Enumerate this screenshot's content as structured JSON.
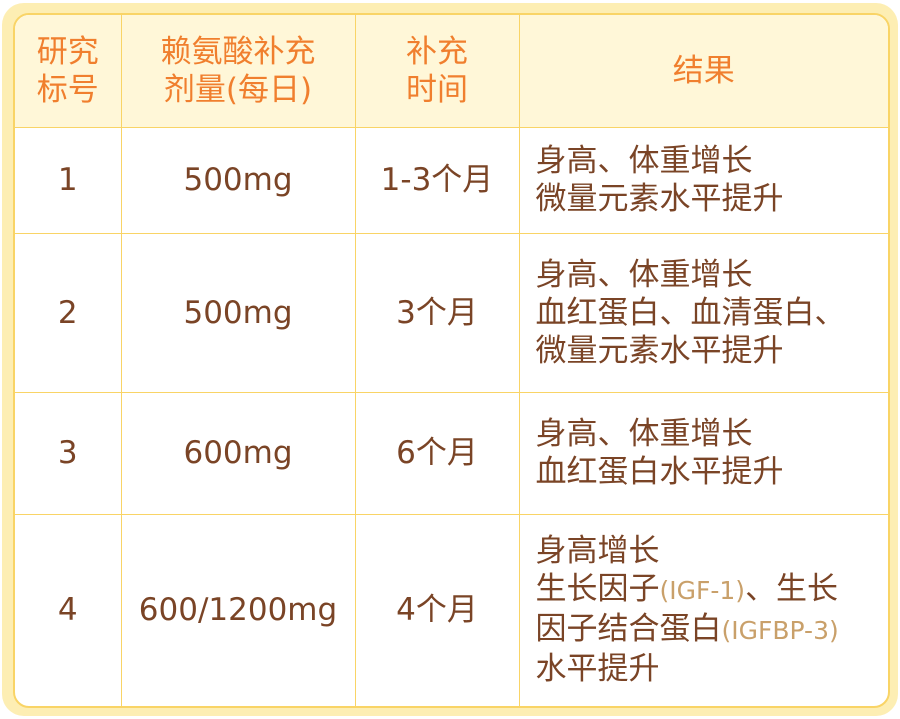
{
  "headers": [
    "研究\n标号",
    "赖氨酸补充\n剂量(每日)",
    "补充\n时间",
    "结果"
  ],
  "rows": [
    {
      "id": "1",
      "dose": "500mg",
      "duration": "1-3个月",
      "result": "身高、体重增长\n微量元素水平提升"
    },
    {
      "id": "2",
      "dose": "500mg",
      "duration": "3个月",
      "result": "身高、体重增长\n血红蛋白、血清蛋白、\n微量元素水平提升"
    },
    {
      "id": "3",
      "dose": "600mg",
      "duration": "6个月",
      "result": "身高、体重增长\n血红蛋白水平提升"
    },
    {
      "id": "4",
      "dose": "600/1200mg",
      "duration": "4个月",
      "result_parts": {
        "line1": "身高增长",
        "line2a": "生长因子",
        "abbr1": "(IGF-1)",
        "line2b": "、生长",
        "line3a": "因子结合蛋白",
        "abbr2": "(IGFBP-3)",
        "line4": "水平提升"
      }
    }
  ],
  "colors": {
    "header_text": "#f07f2e",
    "body_text": "#7a4426",
    "abbr_text": "#c9a06a",
    "border": "#f9d466",
    "header_bg": "#fff7d8",
    "frame_bg": "#fdeeb3"
  }
}
